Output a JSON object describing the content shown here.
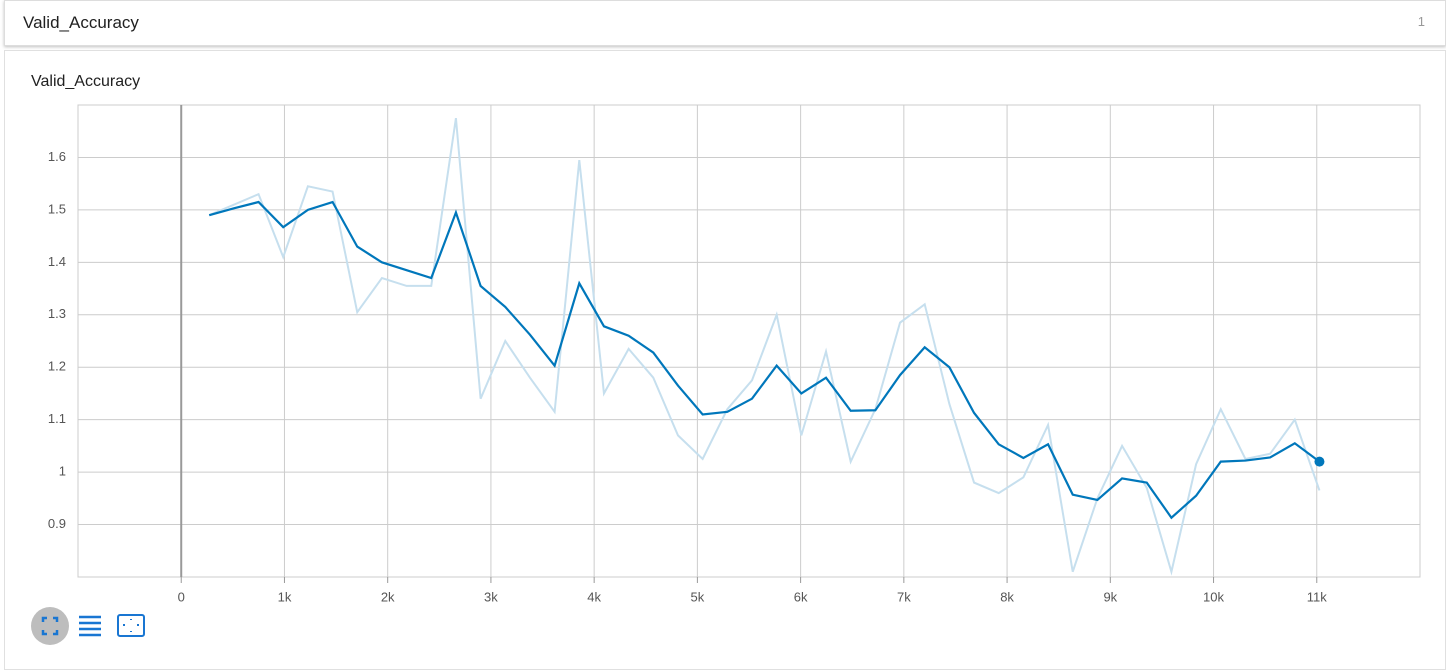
{
  "header": {
    "title": "Valid_Accuracy",
    "count": "1"
  },
  "chart_data": {
    "type": "line",
    "title": "Valid_Accuracy",
    "x": [
      271,
      510,
      749,
      988,
      1227,
      1466,
      1705,
      1944,
      2183,
      2422,
      2661,
      2900,
      3139,
      3378,
      3617,
      3856,
      4095,
      4334,
      4573,
      4812,
      5051,
      5290,
      5529,
      5768,
      6007,
      6246,
      6485,
      6724,
      6963,
      7202,
      7441,
      7680,
      7919,
      8158,
      8397,
      8636,
      8875,
      9114,
      9353,
      9592,
      9831,
      10070,
      10309,
      10548,
      10787,
      11026
    ],
    "series": [
      {
        "color": "#c6dfee",
        "values": [
          1.49,
          1.51,
          1.53,
          1.41,
          1.545,
          1.535,
          1.305,
          1.37,
          1.355,
          1.355,
          1.675,
          1.14,
          1.25,
          1.18,
          1.115,
          1.595,
          1.15,
          1.235,
          1.18,
          1.07,
          1.025,
          1.12,
          1.175,
          1.3,
          1.07,
          1.23,
          1.02,
          1.12,
          1.285,
          1.32,
          1.13,
          0.98,
          0.96,
          0.99,
          1.09,
          0.81,
          0.95,
          1.05,
          0.97,
          0.81,
          1.015,
          1.12,
          1.025,
          1.035,
          1.1,
          0.965
        ]
      },
      {
        "color": "#0077bb",
        "values": [
          1.49,
          1.503,
          1.515,
          1.467,
          1.5,
          1.515,
          1.43,
          1.4,
          1.385,
          1.37,
          1.495,
          1.355,
          1.315,
          1.262,
          1.203,
          1.36,
          1.278,
          1.26,
          1.228,
          1.165,
          1.11,
          1.115,
          1.14,
          1.203,
          1.15,
          1.18,
          1.117,
          1.118,
          1.185,
          1.238,
          1.2,
          1.113,
          1.053,
          1.027,
          1.053,
          0.957,
          0.947,
          0.988,
          0.98,
          0.913,
          0.955,
          1.02,
          1.022,
          1.028,
          1.055,
          1.02
        ]
      }
    ],
    "xlim": [
      -1000,
      12000
    ],
    "xticks": [
      0,
      {
        "value": 1000,
        "label": "1k"
      },
      {
        "value": 2000,
        "label": "2k"
      },
      {
        "value": 3000,
        "label": "3k"
      },
      {
        "value": 4000,
        "label": "4k"
      },
      {
        "value": 5000,
        "label": "5k"
      },
      {
        "value": 6000,
        "label": "6k"
      },
      {
        "value": 7000,
        "label": "7k"
      },
      {
        "value": 8000,
        "label": "8k"
      },
      {
        "value": 9000,
        "label": "9k"
      },
      {
        "value": 10000,
        "label": "10k"
      },
      {
        "value": 11000,
        "label": "11k"
      }
    ],
    "ylim": [
      0.8,
      1.7
    ],
    "yticks": [
      0.9,
      1,
      1.1,
      1.2,
      1.3,
      1.4,
      1.5,
      1.6
    ],
    "grid": true
  }
}
